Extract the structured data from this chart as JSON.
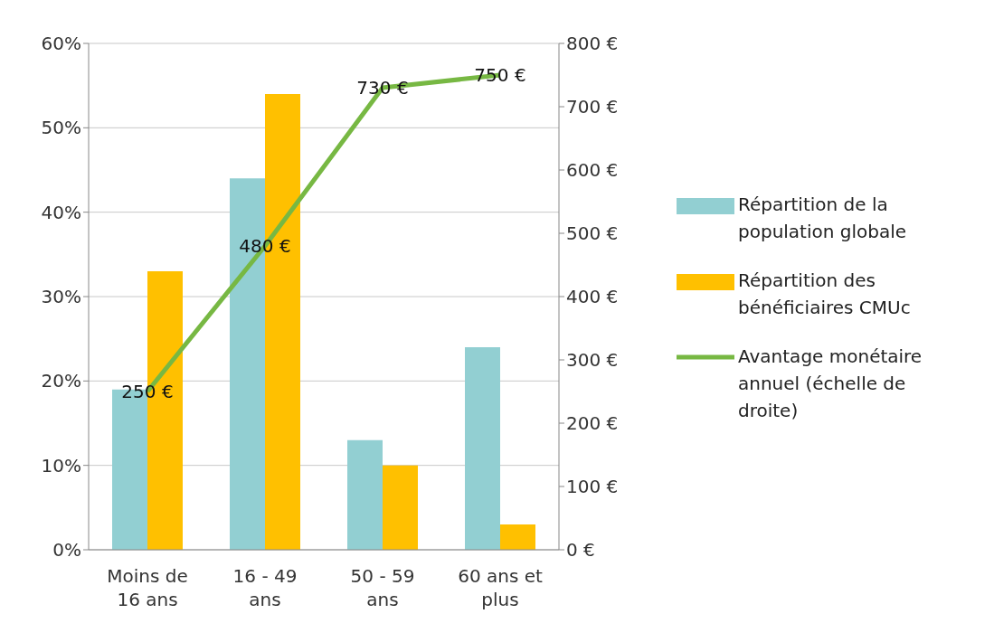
{
  "chart_data": {
    "type": "bar",
    "categories": [
      "Moins de 16 ans",
      "16 - 49 ans",
      "50 - 59 ans",
      "60 ans et plus"
    ],
    "series": [
      {
        "name": "Répartition de la population globale",
        "color": "#92cfd2",
        "values": [
          19,
          44,
          13,
          24
        ]
      },
      {
        "name": "Répartition des bénéficiaires CMUc",
        "color": "#ffc000",
        "values": [
          33,
          54,
          10,
          3
        ]
      },
      {
        "name": "Avantage monétaire annuel (échelle de droite)",
        "type": "line",
        "axis": "y2",
        "color": "#77b843",
        "values": [
          250,
          480,
          730,
          750
        ],
        "value_labels": [
          "250 €",
          "480 €",
          "730 €",
          "750 €"
        ]
      }
    ],
    "ylim": [
      0,
      60
    ],
    "yticks": [
      {
        "value": 0,
        "label": "0%"
      },
      {
        "value": 10,
        "label": "10%"
      },
      {
        "value": 20,
        "label": "20%"
      },
      {
        "value": 30,
        "label": "30%"
      },
      {
        "value": 40,
        "label": "40%"
      },
      {
        "value": 50,
        "label": "50%"
      },
      {
        "value": 60,
        "label": "60%"
      }
    ],
    "y2lim": [
      0,
      800
    ],
    "y2ticks": [
      {
        "value": 0,
        "label": "0 €"
      },
      {
        "value": 100,
        "label": "100 €"
      },
      {
        "value": 200,
        "label": "200 €"
      },
      {
        "value": 300,
        "label": "300 €"
      },
      {
        "value": 400,
        "label": "400 €"
      },
      {
        "value": 500,
        "label": "500 €"
      },
      {
        "value": 600,
        "label": "600 €"
      },
      {
        "value": 700,
        "label": "700 €"
      },
      {
        "value": 800,
        "label": "800 €"
      }
    ],
    "grid": "y",
    "legend": "right",
    "marker": "none"
  }
}
